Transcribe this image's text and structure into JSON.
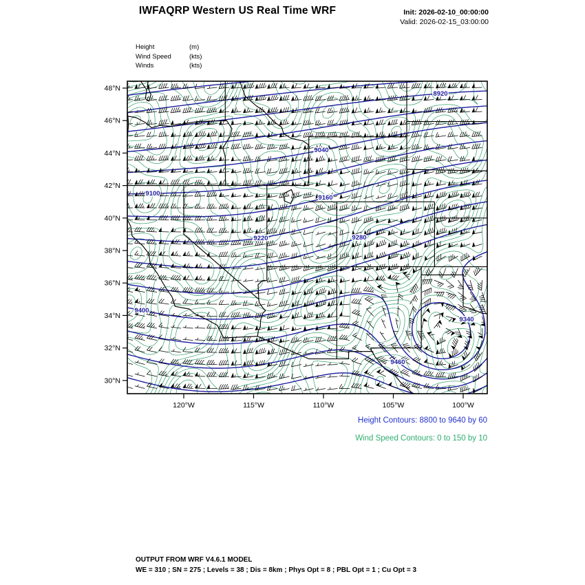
{
  "header": {
    "title": "IWFAQRP Western US Real Time WRF",
    "init_label": "Init: 2026-02-10_00:00:00",
    "valid_label": "Valid: 2026-02-15_03:00:00"
  },
  "legend": {
    "rows": [
      {
        "name": "Height",
        "unit": "(m)"
      },
      {
        "name": "Wind Speed",
        "unit": "(kts)"
      },
      {
        "name": "Winds",
        "unit": "(kts)"
      }
    ]
  },
  "map": {
    "lat_ticks": [
      "48°N",
      "46°N",
      "44°N",
      "42°N",
      "40°N",
      "38°N",
      "36°N",
      "34°N",
      "32°N",
      "30°N"
    ],
    "lon_ticks": [
      "120°W",
      "115°W",
      "110°W",
      "105°W",
      "100°W"
    ],
    "height_contours": {
      "min": 8800,
      "max": 9640,
      "step": 60,
      "labeled_levels": [
        8920,
        9040,
        9100,
        9160,
        9220,
        9280,
        9340,
        9400,
        9460
      ]
    },
    "wind_speed_contours": {
      "min": 0,
      "max": 150,
      "step": 10
    }
  },
  "captions": {
    "height": "Height Contours: 8800 to 9640 by 60",
    "wind": "Wind Speed Contours: 0 to 150 by 10"
  },
  "footer": {
    "line1": "OUTPUT FROM WRF V4.6.1 MODEL",
    "line2": "WE = 310 ; SN = 275 ; Levels = 38 ; Dis = 8km ; Phys Opt = 8 ; PBL Opt = 1 ; Cu Opt = 3"
  },
  "colors": {
    "height_contour": "#1c1c9e",
    "height_caption": "#2233cc",
    "wind_contour": "#2fa06a",
    "wind_caption": "#2fae6f",
    "geography": "#000000",
    "barbs": "#000000"
  }
}
